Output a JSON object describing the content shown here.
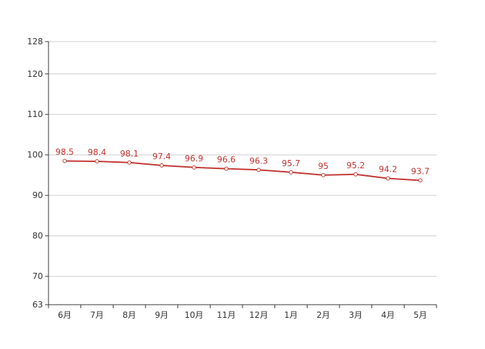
{
  "chart_data": {
    "type": "line",
    "categories": [
      "6月",
      "7月",
      "8月",
      "9月",
      "10月",
      "11月",
      "12月",
      "1月",
      "2月",
      "3月",
      "4月",
      "5月"
    ],
    "series": [
      {
        "values": [
          98.5,
          98.4,
          98.1,
          97.4,
          96.9,
          96.6,
          96.3,
          95.7,
          95,
          95.2,
          94.2,
          93.7
        ],
        "color": "#c23531"
      }
    ],
    "ylim": [
      63,
      128
    ],
    "yticks": [
      63,
      70,
      80,
      90,
      100,
      110,
      120,
      128
    ],
    "grid": true,
    "data_labels": true
  }
}
